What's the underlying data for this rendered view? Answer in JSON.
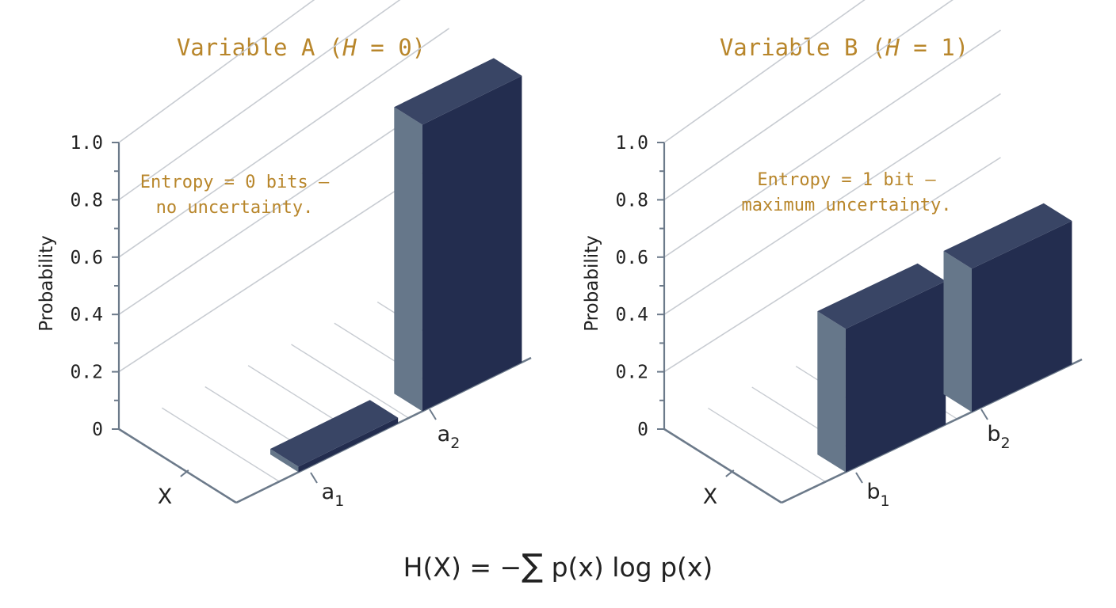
{
  "chart_data": [
    {
      "type": "bar",
      "title": "Variable A (H = 0)",
      "title_parts": [
        "Variable A (",
        "H",
        " = 0)"
      ],
      "ylabel": "Probability",
      "xlabel": "X",
      "ylim": [
        0,
        1.0
      ],
      "yticks": [
        "0",
        "0.2",
        "0.4",
        "0.6",
        "0.8",
        "1.0"
      ],
      "categories": [
        {
          "base": "a",
          "sub": "1"
        },
        {
          "base": "a",
          "sub": "2"
        }
      ],
      "values": [
        0.0,
        1.0
      ],
      "annotation": [
        "Entropy = 0 bits —",
        "no uncertainty."
      ]
    },
    {
      "type": "bar",
      "title": "Variable B (H = 1)",
      "title_parts": [
        "Variable B (",
        "H",
        " = 1)"
      ],
      "ylabel": "Probability",
      "xlabel": "X",
      "ylim": [
        0,
        1.0
      ],
      "yticks": [
        "0",
        "0.2",
        "0.4",
        "0.6",
        "0.8",
        "1.0"
      ],
      "categories": [
        {
          "base": "b",
          "sub": "1"
        },
        {
          "base": "b",
          "sub": "2"
        }
      ],
      "values": [
        0.5,
        0.5
      ],
      "annotation": [
        "Entropy = 1 bit —",
        "maximum uncertainty."
      ]
    }
  ],
  "formula": {
    "parts": [
      "H(X) = −",
      "∑",
      " p(x) log p(x)"
    ]
  },
  "colors": {
    "bar_front": "#66778a",
    "bar_side": "#232d4f",
    "bar_top": "#394565",
    "axis": "#6c7a8a",
    "grid": "#c8ccd2",
    "accent": "#b8862b",
    "text": "#222222"
  }
}
